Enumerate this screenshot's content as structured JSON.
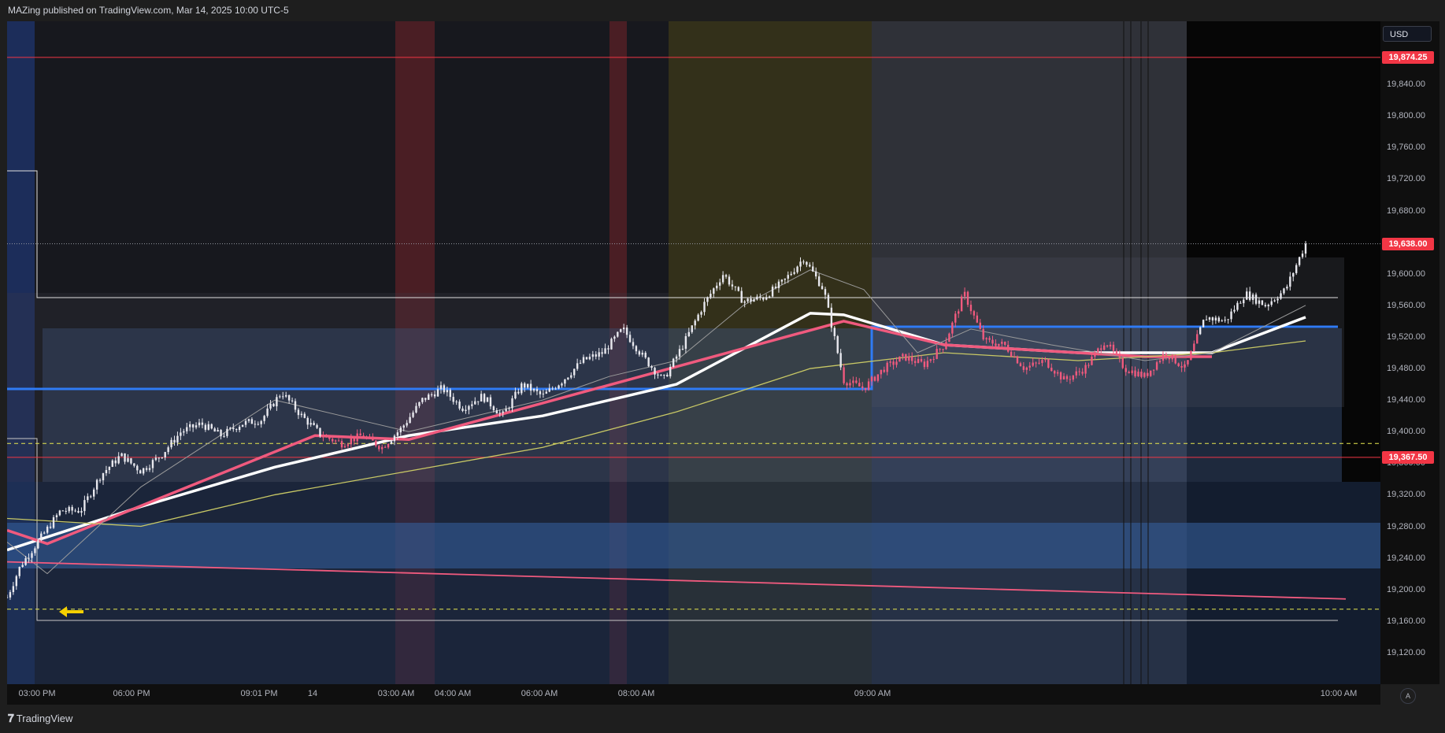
{
  "header": {
    "text": "MAZing published on TradingView.com, Mar 14, 2025 10:00 UTC-5"
  },
  "footer": {
    "brand": "TradingView",
    "logo_icon": "tradingview-logo-icon"
  },
  "price_axis": {
    "currency": "USD",
    "auto_label": "A"
  },
  "chart_data": {
    "type": "candlestick",
    "title": "",
    "price_ticks": [
      "19,840.00",
      "19,800.00",
      "19,760.00",
      "19,720.00",
      "19,680.00",
      "19,640.00",
      "19,600.00",
      "19,560.00",
      "19,520.00",
      "19,480.00",
      "19,440.00",
      "19,400.00",
      "19,360.00",
      "19,320.00",
      "19,280.00",
      "19,240.00",
      "19,200.00",
      "19,160.00",
      "19,120.00"
    ],
    "time_ticks": [
      "03:00 PM",
      "06:00 PM",
      "09:01 PM",
      "14",
      "03:00 AM",
      "04:00 AM",
      "06:00 AM",
      "08:00 AM",
      "09:00 AM",
      "10:00 AM"
    ],
    "price_badges": [
      {
        "label": "19,874.25",
        "value": 19874.25,
        "color": "#f23645"
      },
      {
        "label": "19,638.00",
        "value": 19638.0,
        "color": "#f23645"
      },
      {
        "label": "19,367.50",
        "value": 19367.5,
        "color": "#f23645"
      }
    ],
    "ylim": [
      19080,
      19920
    ],
    "price_path": [
      [
        0,
        19190
      ],
      [
        0.01,
        19230
      ],
      [
        0.025,
        19265
      ],
      [
        0.04,
        19300
      ],
      [
        0.055,
        19300
      ],
      [
        0.07,
        19345
      ],
      [
        0.085,
        19370
      ],
      [
        0.1,
        19350
      ],
      [
        0.115,
        19370
      ],
      [
        0.13,
        19400
      ],
      [
        0.145,
        19410
      ],
      [
        0.16,
        19395
      ],
      [
        0.175,
        19410
      ],
      [
        0.19,
        19415
      ],
      [
        0.205,
        19450
      ],
      [
        0.22,
        19420
      ],
      [
        0.235,
        19395
      ],
      [
        0.25,
        19385
      ],
      [
        0.265,
        19395
      ],
      [
        0.28,
        19380
      ],
      [
        0.295,
        19405
      ],
      [
        0.31,
        19440
      ],
      [
        0.325,
        19455
      ],
      [
        0.34,
        19430
      ],
      [
        0.355,
        19445
      ],
      [
        0.37,
        19420
      ],
      [
        0.385,
        19460
      ],
      [
        0.4,
        19445
      ],
      [
        0.415,
        19465
      ],
      [
        0.43,
        19490
      ],
      [
        0.445,
        19500
      ],
      [
        0.46,
        19530
      ],
      [
        0.475,
        19495
      ],
      [
        0.49,
        19465
      ],
      [
        0.505,
        19510
      ],
      [
        0.52,
        19560
      ],
      [
        0.535,
        19600
      ],
      [
        0.55,
        19565
      ],
      [
        0.565,
        19570
      ],
      [
        0.58,
        19590
      ],
      [
        0.595,
        19620
      ],
      [
        0.61,
        19580
      ],
      [
        0.625,
        19465
      ],
      [
        0.64,
        19455
      ],
      [
        0.655,
        19480
      ],
      [
        0.67,
        19495
      ],
      [
        0.685,
        19485
      ],
      [
        0.7,
        19510
      ],
      [
        0.715,
        19575
      ],
      [
        0.73,
        19515
      ],
      [
        0.745,
        19510
      ],
      [
        0.76,
        19480
      ],
      [
        0.775,
        19490
      ],
      [
        0.79,
        19465
      ],
      [
        0.805,
        19480
      ],
      [
        0.82,
        19515
      ],
      [
        0.835,
        19480
      ],
      [
        0.85,
        19470
      ],
      [
        0.865,
        19500
      ],
      [
        0.88,
        19480
      ],
      [
        0.895,
        19545
      ],
      [
        0.91,
        19540
      ],
      [
        0.925,
        19575
      ],
      [
        0.94,
        19560
      ],
      [
        0.955,
        19580
      ],
      [
        0.97,
        19638
      ]
    ],
    "series": [
      {
        "name": "",
        "color": "#ffffff",
        "points": [
          [
            0,
            19250
          ],
          [
            0.1,
            19305
          ],
          [
            0.2,
            19355
          ],
          [
            0.3,
            19395
          ],
          [
            0.4,
            19420
          ],
          [
            0.5,
            19460
          ],
          [
            0.55,
            19505
          ],
          [
            0.6,
            19550
          ],
          [
            0.625,
            19548
          ],
          [
            0.7,
            19510
          ],
          [
            0.8,
            19500
          ],
          [
            0.9,
            19500
          ],
          [
            0.97,
            19545
          ]
        ]
      },
      {
        "name": "",
        "color": "#f05a7e",
        "points": [
          [
            0,
            19275
          ],
          [
            0.03,
            19258
          ],
          [
            0.23,
            19395
          ],
          [
            0.3,
            19390
          ],
          [
            0.625,
            19540
          ],
          [
            0.7,
            19510
          ],
          [
            0.85,
            19495
          ],
          [
            0.9,
            19495
          ]
        ]
      },
      {
        "name": "",
        "color": "#c8c865",
        "points": [
          [
            0,
            19290
          ],
          [
            0.1,
            19280
          ],
          [
            0.2,
            19320
          ],
          [
            0.3,
            19350
          ],
          [
            0.4,
            19380
          ],
          [
            0.5,
            19425
          ],
          [
            0.6,
            19480
          ],
          [
            0.7,
            19500
          ],
          [
            0.8,
            19490
          ],
          [
            0.9,
            19500
          ],
          [
            0.97,
            19515
          ]
        ]
      },
      {
        "name": "",
        "color": "#9a9a9a",
        "points": [
          [
            0,
            19260
          ],
          [
            0.03,
            19220
          ],
          [
            0.1,
            19330
          ],
          [
            0.2,
            19440
          ],
          [
            0.25,
            19420
          ],
          [
            0.3,
            19400
          ],
          [
            0.4,
            19440
          ],
          [
            0.45,
            19470
          ],
          [
            0.5,
            19490
          ],
          [
            0.55,
            19560
          ],
          [
            0.6,
            19605
          ],
          [
            0.64,
            19580
          ],
          [
            0.68,
            19500
          ],
          [
            0.72,
            19530
          ],
          [
            0.78,
            19510
          ],
          [
            0.85,
            19490
          ],
          [
            0.9,
            19500
          ],
          [
            0.97,
            19560
          ]
        ]
      },
      {
        "name": "",
        "color": "#f05a7e",
        "points": [
          [
            0,
            19235
          ],
          [
            1,
            19188
          ]
        ]
      }
    ],
    "levels": [
      {
        "value": 19874.25,
        "color": "#f23645",
        "style": "solid"
      },
      {
        "value": 19367.5,
        "color": "#f23645",
        "style": "solid"
      },
      {
        "value": 19385,
        "color": "#e8e84f",
        "style": "dashed"
      },
      {
        "value": 19175,
        "color": "#e8e84f",
        "style": "dashed"
      }
    ]
  }
}
